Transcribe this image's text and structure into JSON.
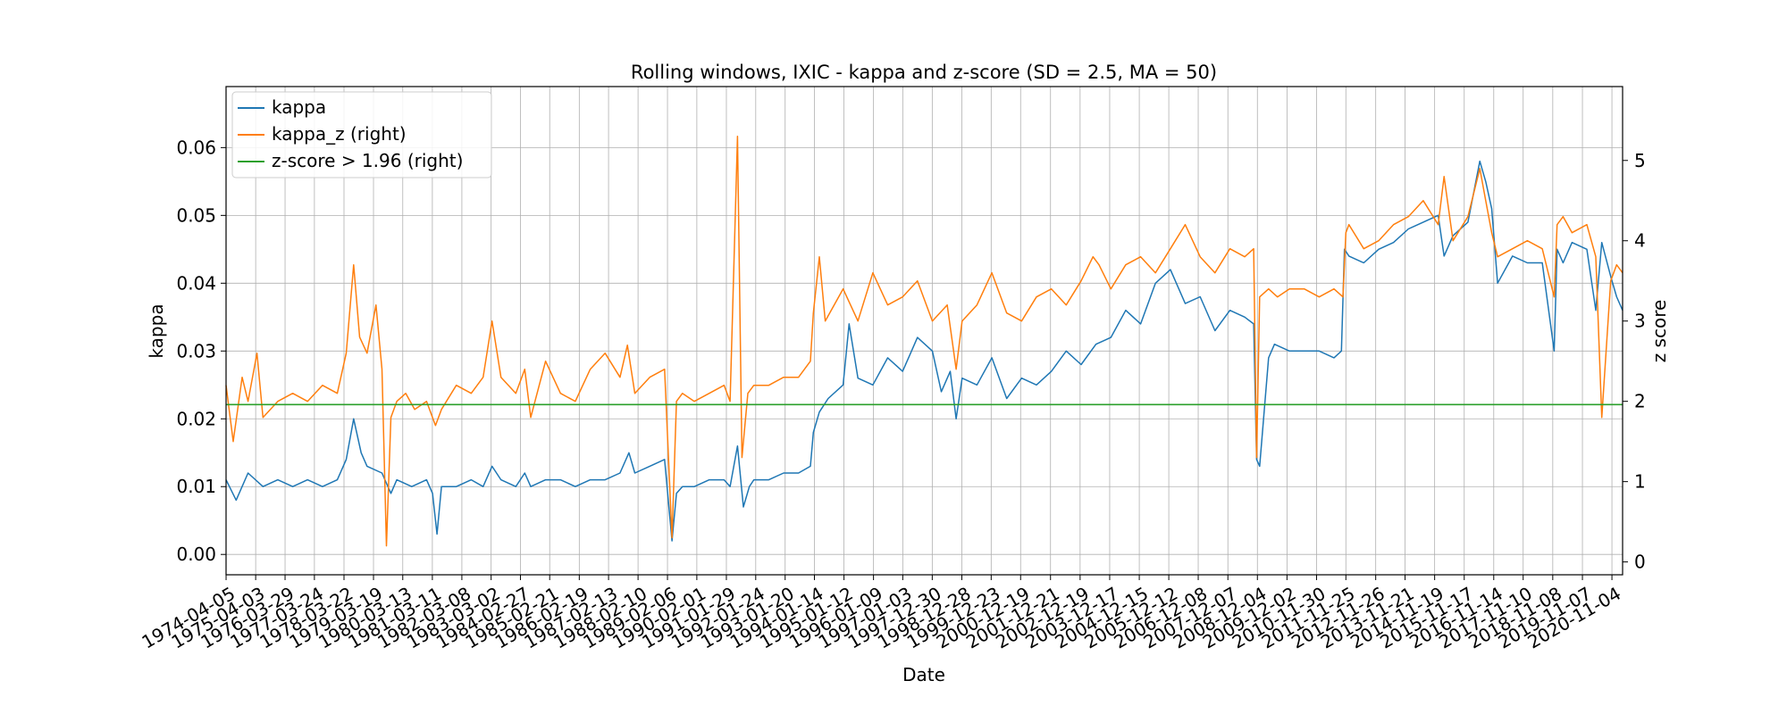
{
  "chart_data": {
    "type": "line",
    "title": "Rolling windows, IXIC - kappa and z-score (SD = 2.5, MA = 50)",
    "xlabel": "Date",
    "ylabel": "kappa",
    "ylabel_right": "z score",
    "ylim": [
      -0.003,
      0.069
    ],
    "ylim_right": [
      -0.16,
      5.92
    ],
    "yticks": [
      "0.00",
      "0.01",
      "0.02",
      "0.03",
      "0.04",
      "0.05",
      "0.06"
    ],
    "yticks_right": [
      "0",
      "1",
      "2",
      "3",
      "4",
      "5"
    ],
    "grid": true,
    "legend": "upper-left",
    "x_tick_labels": [
      "1974-04-05",
      "1975-04-03",
      "1976-03-29",
      "1977-03-24",
      "1978-03-22",
      "1979-03-19",
      "1980-03-13",
      "1981-03-11",
      "1982-03-08",
      "1983-03-02",
      "1984-02-27",
      "1985-02-21",
      "1986-02-19",
      "1987-02-13",
      "1988-02-10",
      "1989-02-06",
      "1990-02-01",
      "1991-01-29",
      "1992-01-24",
      "1993-01-20",
      "1994-01-14",
      "1995-01-12",
      "1996-01-09",
      "1997-01-03",
      "1997-12-30",
      "1998-12-28",
      "1999-12-23",
      "2000-12-19",
      "2001-12-21",
      "2002-12-19",
      "2003-12-17",
      "2004-12-15",
      "2005-12-12",
      "2006-12-08",
      "2007-12-07",
      "2008-12-04",
      "2009-12-02",
      "2010-11-30",
      "2011-11-25",
      "2012-11-26",
      "2013-11-21",
      "2014-11-19",
      "2015-11-17",
      "2016-11-14",
      "2017-11-10",
      "2018-11-08",
      "2019-11-07",
      "2020-11-04"
    ],
    "x_range": [
      1974.26,
      2021.2
    ],
    "series": [
      {
        "name": "kappa",
        "axis": "left",
        "color": "#1f77b4",
        "x": [
          1974.26,
          1974.6,
          1975.0,
          1975.5,
          1976.0,
          1976.5,
          1977.0,
          1977.5,
          1978.0,
          1978.3,
          1978.55,
          1978.8,
          1979.0,
          1979.5,
          1979.8,
          1980.0,
          1980.5,
          1981.0,
          1981.2,
          1981.35,
          1981.5,
          1982.0,
          1982.5,
          1982.9,
          1983.2,
          1983.5,
          1984.0,
          1984.3,
          1984.5,
          1985.0,
          1985.5,
          1986.0,
          1986.5,
          1987.0,
          1987.5,
          1987.8,
          1988.0,
          1988.5,
          1989.0,
          1989.25,
          1989.4,
          1989.6,
          1990.0,
          1990.5,
          1991.0,
          1991.2,
          1991.45,
          1991.65,
          1991.85,
          1992.0,
          1992.5,
          1993.0,
          1993.5,
          1993.9,
          1994.0,
          1994.2,
          1994.5,
          1995.0,
          1995.2,
          1995.5,
          1996.0,
          1996.5,
          1997.0,
          1997.5,
          1998.0,
          1998.3,
          1998.6,
          1998.8,
          1999.0,
          1999.5,
          2000.0,
          2000.5,
          2001.0,
          2001.5,
          2002.0,
          2002.5,
          2003.0,
          2003.5,
          2004.0,
          2004.5,
          2005.0,
          2005.5,
          2006.0,
          2006.5,
          2007.0,
          2007.5,
          2008.0,
          2008.5,
          2008.8,
          2008.9,
          2009.0,
          2009.3,
          2009.5,
          2010.0,
          2010.5,
          2011.0,
          2011.5,
          2011.75,
          2011.85,
          2012.0,
          2012.5,
          2013.0,
          2013.5,
          2014.0,
          2014.5,
          2015.0,
          2015.2,
          2015.5,
          2016.0,
          2016.4,
          2016.6,
          2016.8,
          2017.0,
          2017.5,
          2018.0,
          2018.5,
          2018.9,
          2019.0,
          2019.2,
          2019.5,
          2020.0,
          2020.3,
          2020.5,
          2020.8,
          2021.0,
          2021.2
        ],
        "y": [
          0.011,
          0.008,
          0.012,
          0.01,
          0.011,
          0.01,
          0.011,
          0.01,
          0.011,
          0.014,
          0.02,
          0.015,
          0.013,
          0.012,
          0.009,
          0.011,
          0.01,
          0.011,
          0.009,
          0.003,
          0.01,
          0.01,
          0.011,
          0.01,
          0.013,
          0.011,
          0.01,
          0.012,
          0.01,
          0.011,
          0.011,
          0.01,
          0.011,
          0.011,
          0.012,
          0.015,
          0.012,
          0.013,
          0.014,
          0.002,
          0.009,
          0.01,
          0.01,
          0.011,
          0.011,
          0.01,
          0.016,
          0.007,
          0.01,
          0.011,
          0.011,
          0.012,
          0.012,
          0.013,
          0.018,
          0.021,
          0.023,
          0.025,
          0.034,
          0.026,
          0.025,
          0.029,
          0.027,
          0.032,
          0.03,
          0.024,
          0.027,
          0.02,
          0.026,
          0.025,
          0.029,
          0.023,
          0.026,
          0.025,
          0.027,
          0.03,
          0.028,
          0.031,
          0.032,
          0.036,
          0.034,
          0.04,
          0.042,
          0.037,
          0.038,
          0.033,
          0.036,
          0.035,
          0.034,
          0.014,
          0.013,
          0.029,
          0.031,
          0.03,
          0.03,
          0.03,
          0.029,
          0.03,
          0.045,
          0.044,
          0.043,
          0.045,
          0.046,
          0.048,
          0.049,
          0.05,
          0.044,
          0.047,
          0.049,
          0.058,
          0.055,
          0.051,
          0.04,
          0.044,
          0.043,
          0.043,
          0.03,
          0.045,
          0.043,
          0.046,
          0.045,
          0.036,
          0.046,
          0.041,
          0.038,
          0.036
        ]
      },
      {
        "name": "kappa_z (right)",
        "axis": "right",
        "color": "#ff7f0e",
        "x": [
          1974.26,
          1974.5,
          1974.8,
          1975.0,
          1975.3,
          1975.5,
          1976.0,
          1976.5,
          1977.0,
          1977.5,
          1978.0,
          1978.3,
          1978.55,
          1978.75,
          1979.0,
          1979.3,
          1979.5,
          1979.65,
          1979.8,
          1980.0,
          1980.3,
          1980.6,
          1981.0,
          1981.3,
          1981.5,
          1982.0,
          1982.5,
          1982.9,
          1983.2,
          1983.5,
          1984.0,
          1984.3,
          1984.5,
          1985.0,
          1985.5,
          1986.0,
          1986.5,
          1987.0,
          1987.5,
          1987.75,
          1988.0,
          1988.5,
          1989.0,
          1989.25,
          1989.4,
          1989.6,
          1990.0,
          1990.5,
          1991.0,
          1991.2,
          1991.45,
          1991.6,
          1991.8,
          1992.0,
          1992.5,
          1993.0,
          1993.5,
          1993.9,
          1994.0,
          1994.2,
          1994.4,
          1994.7,
          1995.0,
          1995.5,
          1996.0,
          1996.5,
          1997.0,
          1997.5,
          1998.0,
          1998.5,
          1998.8,
          1999.0,
          1999.5,
          2000.0,
          2000.5,
          2001.0,
          2001.5,
          2002.0,
          2002.5,
          2003.0,
          2003.4,
          2003.6,
          2004.0,
          2004.5,
          2005.0,
          2005.5,
          2006.0,
          2006.5,
          2007.0,
          2007.5,
          2008.0,
          2008.5,
          2008.8,
          2008.9,
          2009.0,
          2009.3,
          2009.6,
          2010.0,
          2010.5,
          2011.0,
          2011.5,
          2011.8,
          2011.9,
          2012.0,
          2012.5,
          2013.0,
          2013.5,
          2014.0,
          2014.5,
          2015.0,
          2015.2,
          2015.5,
          2016.0,
          2016.4,
          2016.6,
          2016.8,
          2017.0,
          2017.5,
          2018.0,
          2018.5,
          2018.9,
          2019.0,
          2019.2,
          2019.5,
          2020.0,
          2020.3,
          2020.5,
          2020.8,
          2021.0,
          2021.2
        ],
        "y": [
          2.2,
          1.5,
          2.3,
          2.0,
          2.6,
          1.8,
          2.0,
          2.1,
          2.0,
          2.2,
          2.1,
          2.6,
          3.7,
          2.8,
          2.6,
          3.2,
          2.4,
          0.2,
          1.8,
          2.0,
          2.1,
          1.9,
          2.0,
          1.7,
          1.9,
          2.2,
          2.1,
          2.3,
          3.0,
          2.3,
          2.1,
          2.4,
          1.8,
          2.5,
          2.1,
          2.0,
          2.4,
          2.6,
          2.3,
          2.7,
          2.1,
          2.3,
          2.4,
          0.3,
          2.0,
          2.1,
          2.0,
          2.1,
          2.2,
          2.0,
          5.3,
          1.3,
          2.1,
          2.2,
          2.2,
          2.3,
          2.3,
          2.5,
          3.1,
          3.8,
          3.0,
          3.2,
          3.4,
          3.0,
          3.6,
          3.2,
          3.3,
          3.5,
          3.0,
          3.2,
          2.4,
          3.0,
          3.2,
          3.6,
          3.1,
          3.0,
          3.3,
          3.4,
          3.2,
          3.5,
          3.8,
          3.7,
          3.4,
          3.7,
          3.8,
          3.6,
          3.9,
          4.2,
          3.8,
          3.6,
          3.9,
          3.8,
          3.9,
          1.3,
          3.3,
          3.4,
          3.3,
          3.4,
          3.4,
          3.3,
          3.4,
          3.3,
          4.1,
          4.2,
          3.9,
          4.0,
          4.2,
          4.3,
          4.5,
          4.2,
          4.8,
          4.0,
          4.3,
          4.9,
          4.5,
          4.1,
          3.8,
          3.9,
          4.0,
          3.9,
          3.3,
          4.2,
          4.3,
          4.1,
          4.2,
          3.8,
          1.8,
          3.5,
          3.7,
          3.6
        ]
      },
      {
        "name": "z-score > 1.96 (right)",
        "axis": "right",
        "color": "#2ca02c",
        "x": [
          1974.26,
          2021.2
        ],
        "y": [
          1.96,
          1.96
        ]
      }
    ]
  }
}
